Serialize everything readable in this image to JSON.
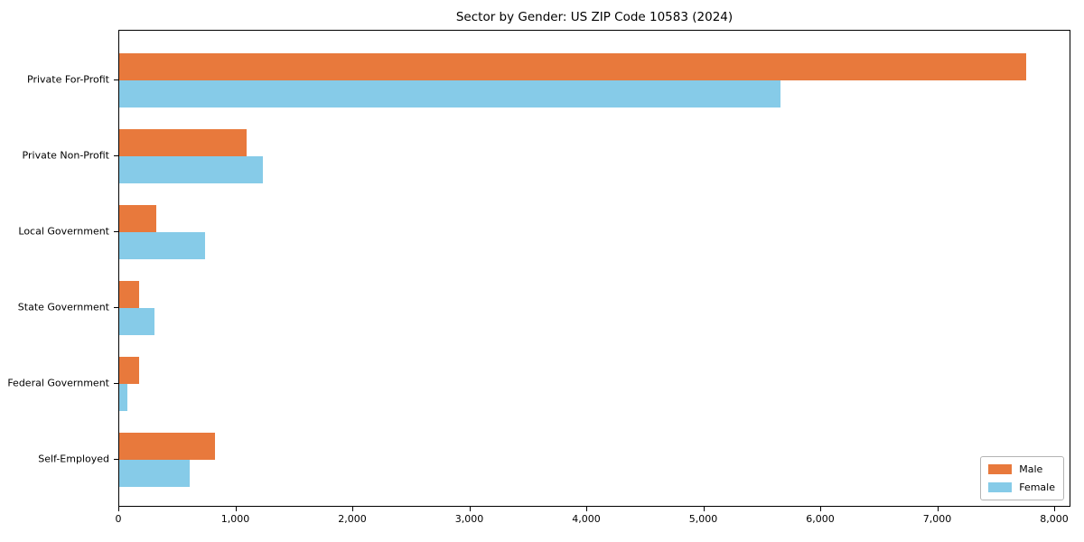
{
  "chart_data": {
    "type": "bar",
    "orientation": "horizontal",
    "title": "Sector by Gender: US ZIP Code 10583 (2024)",
    "categories": [
      "Private For-Profit",
      "Private Non-Profit",
      "Local Government",
      "State Government",
      "Federal Government",
      "Self-Employed"
    ],
    "series": [
      {
        "name": "Male",
        "color": "#e8793c",
        "values": [
          7750,
          1090,
          320,
          170,
          170,
          815
        ]
      },
      {
        "name": "Female",
        "color": "#86cbe8",
        "values": [
          5650,
          1230,
          730,
          300,
          70,
          600
        ]
      }
    ],
    "xlabel": "",
    "ylabel": "",
    "xlim": [
      0,
      8140
    ],
    "x_ticks": [
      0,
      1000,
      2000,
      3000,
      4000,
      5000,
      6000,
      7000,
      8000
    ],
    "x_tick_labels": [
      "0",
      "1,000",
      "2,000",
      "3,000",
      "4,000",
      "5,000",
      "6,000",
      "7,000",
      "8,000"
    ],
    "grid": false,
    "legend": {
      "position": "lower right"
    }
  }
}
